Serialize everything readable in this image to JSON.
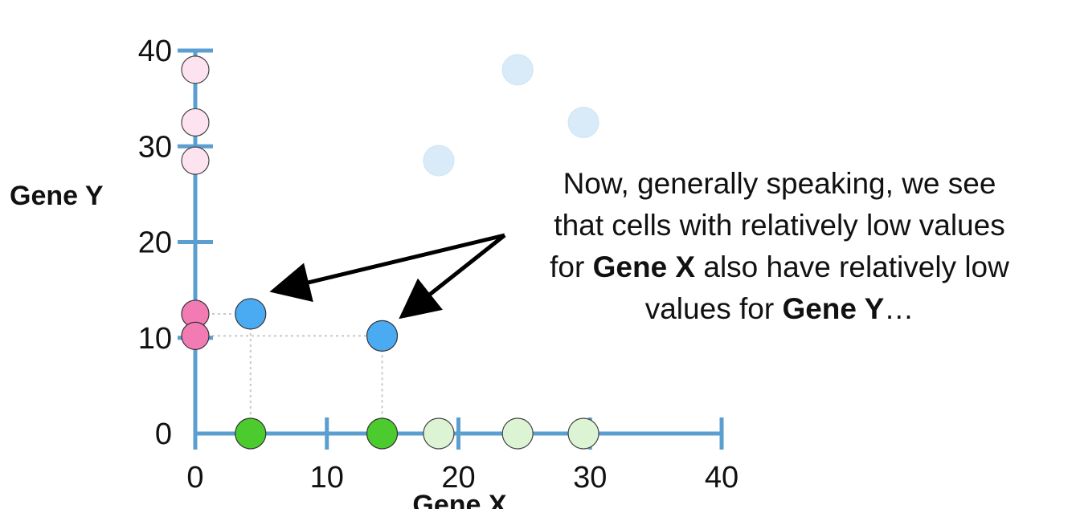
{
  "chart_data": {
    "type": "scatter",
    "xlabel": "Gene X",
    "ylabel": "Gene Y",
    "xlim": [
      0,
      40
    ],
    "ylim": [
      0,
      40
    ],
    "x_ticks": [
      0,
      10,
      20,
      30,
      40
    ],
    "y_ticks": [
      0,
      10,
      20,
      30,
      40
    ],
    "grid": false,
    "colors": {
      "axis": "#5b9fd0",
      "highlight_point": "#4aabf2",
      "highlight_y_proj": "#f37bb4",
      "highlight_x_proj": "#4ccb2e",
      "faded_point": "#d9ebf8",
      "faded_y_proj": "#fde3ef",
      "faded_x_proj": "#dcf4d4"
    },
    "series": [
      {
        "role": "highlighted cells",
        "points": [
          [
            4.2,
            12.5
          ],
          [
            14.2,
            10.2
          ]
        ]
      },
      {
        "role": "faded cells",
        "points": [
          [
            18.5,
            28.5
          ],
          [
            24.5,
            38
          ],
          [
            29.5,
            32.5
          ]
        ]
      }
    ],
    "y_projections": {
      "highlighted": [
        12.5,
        10.2
      ],
      "faded": [
        38,
        32.5,
        28.5
      ]
    },
    "x_projections": {
      "highlighted": [
        4.2,
        14.2
      ],
      "faded": [
        18.5,
        24.5,
        29.5
      ]
    }
  },
  "annotation": {
    "line1": "Now, generally speaking, we see",
    "line2": "that cells with relatively low values",
    "line3_pre": "for ",
    "line3_bold": "Gene X",
    "line3_post": " also have relatively low",
    "line4_pre": "values for ",
    "line4_bold": "Gene Y",
    "line4_post": "…"
  }
}
